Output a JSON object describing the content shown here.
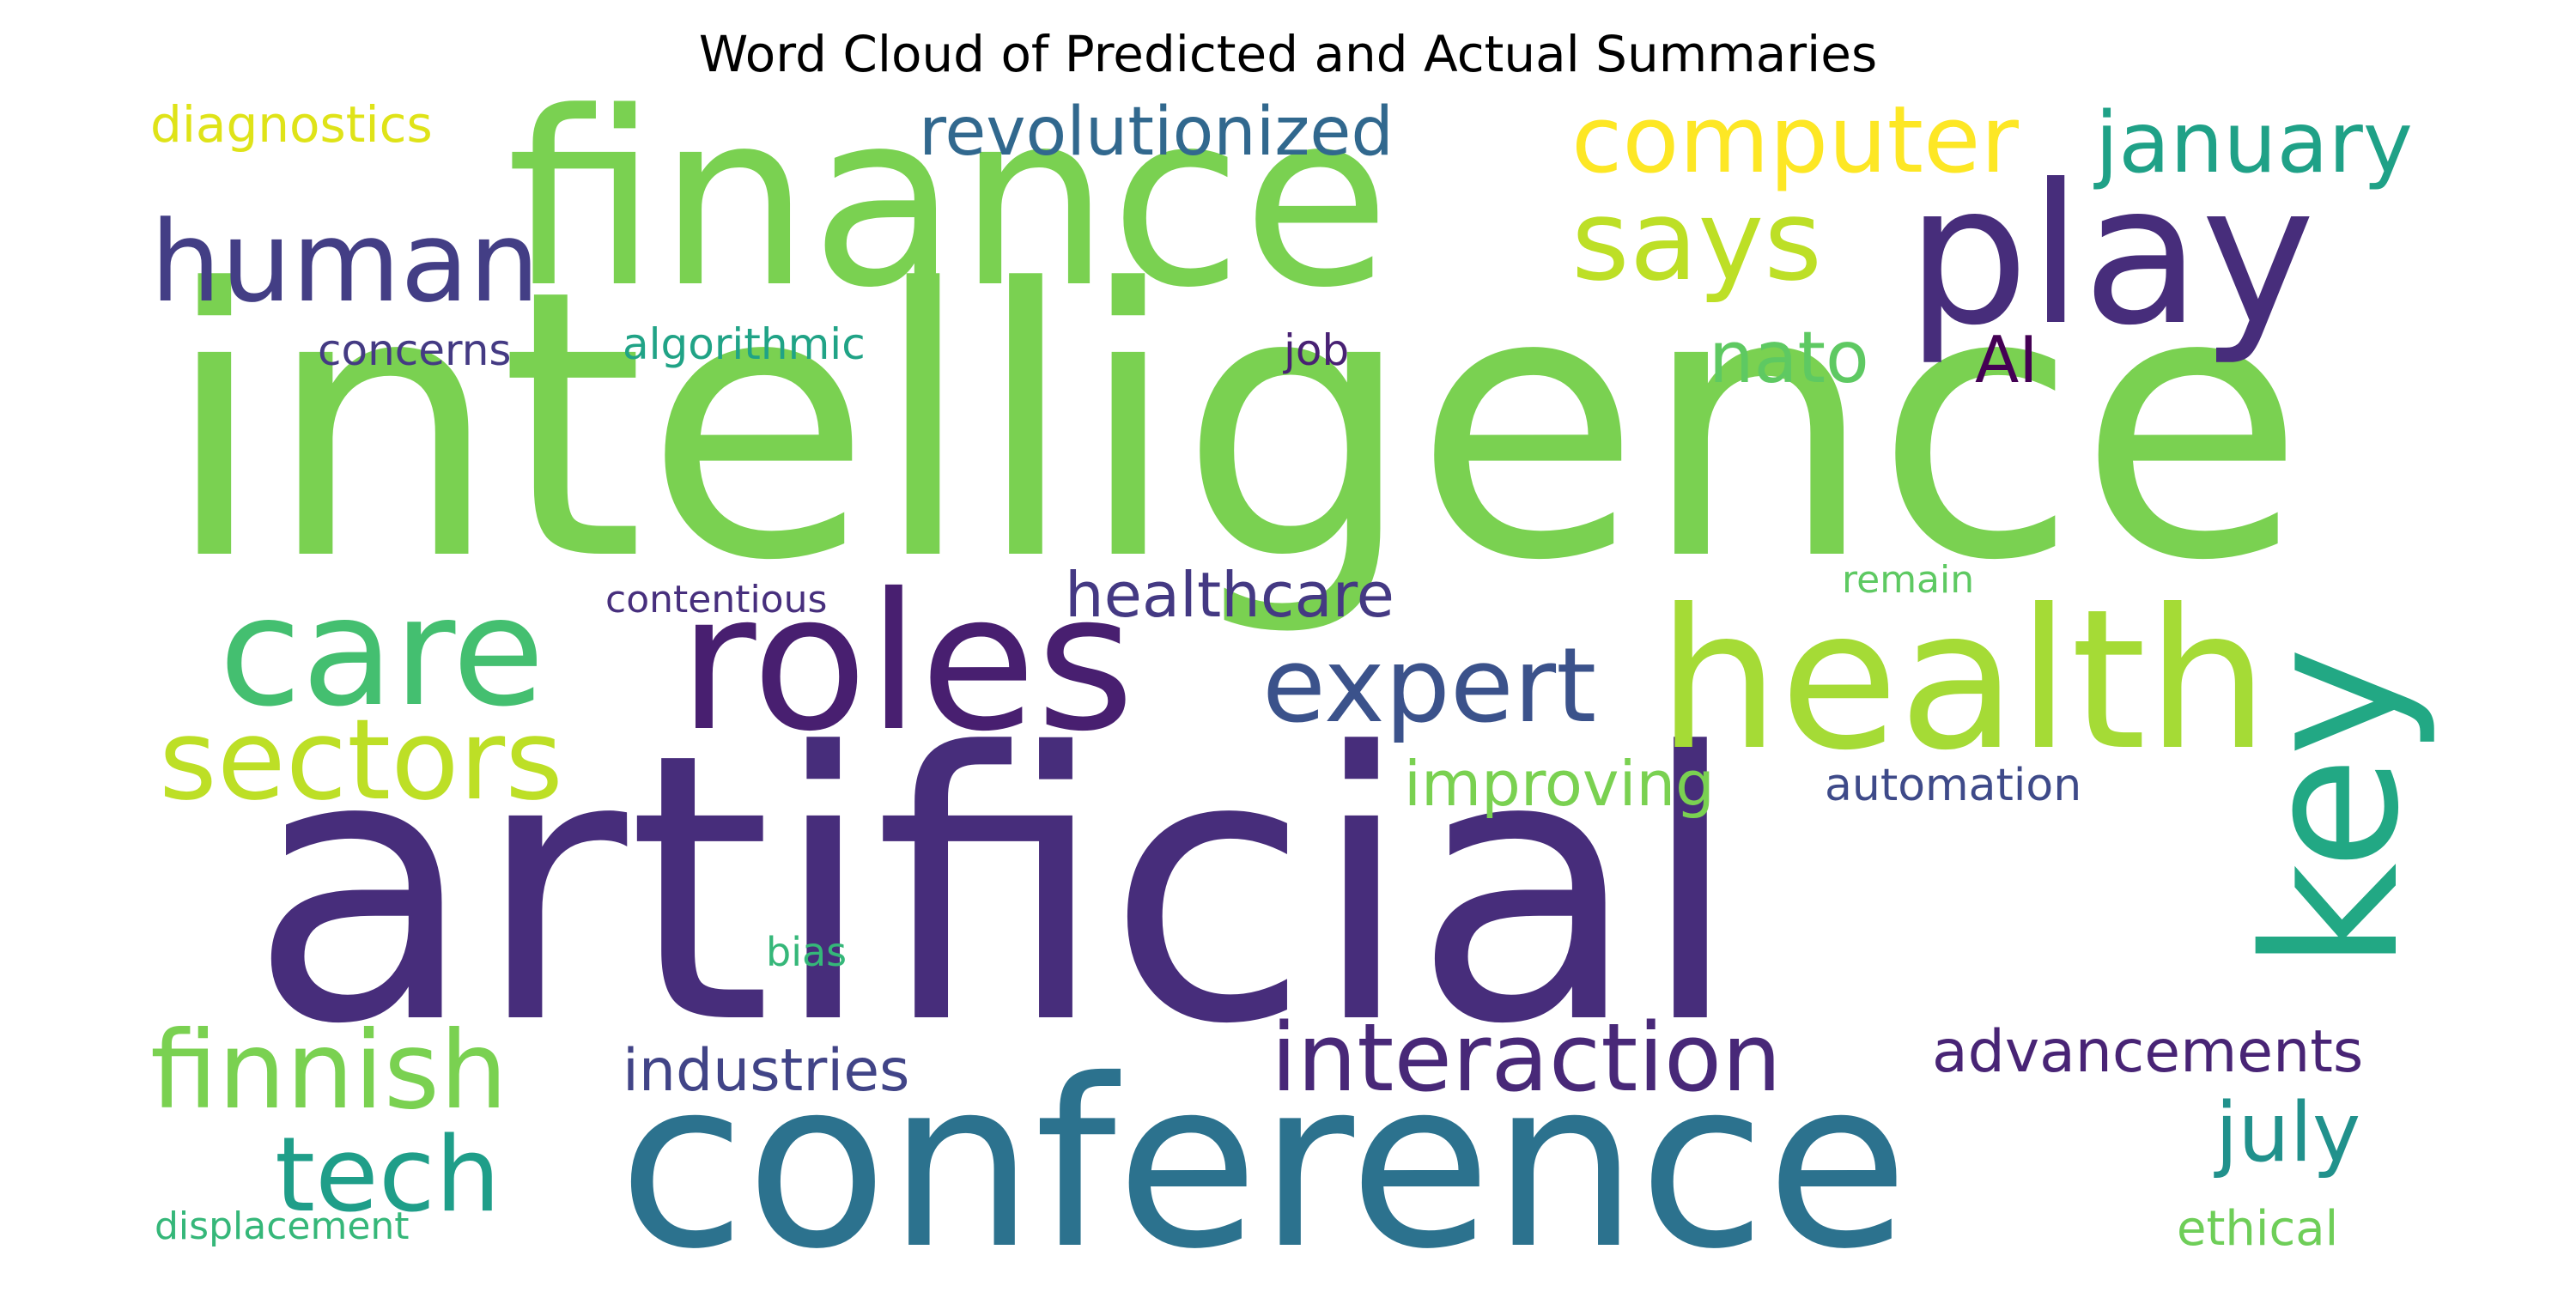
{
  "title": "Word Cloud of Predicted and Actual Summaries",
  "words": [
    {
      "text": "intelligence",
      "color": "#7ad151"
    },
    {
      "text": "artificial",
      "color": "#472d7b"
    },
    {
      "text": "finance",
      "color": "#7ad151"
    },
    {
      "text": "conference",
      "color": "#2c728e"
    },
    {
      "text": "play",
      "color": "#472d7b"
    },
    {
      "text": "health",
      "color": "#a5db36"
    },
    {
      "text": "roles",
      "color": "#481f70"
    },
    {
      "text": "key",
      "color": "#22a884"
    },
    {
      "text": "care",
      "color": "#44bf70"
    },
    {
      "text": "sectors",
      "color": "#bddf26"
    },
    {
      "text": "human",
      "color": "#433e85"
    },
    {
      "text": "says",
      "color": "#bddf26"
    },
    {
      "text": "expert",
      "color": "#3b528b"
    },
    {
      "text": "computer",
      "color": "#fde725"
    },
    {
      "text": "finnish",
      "color": "#7ad151"
    },
    {
      "text": "tech",
      "color": "#1f9e89"
    },
    {
      "text": "interaction",
      "color": "#482878"
    },
    {
      "text": "january",
      "color": "#1fa187"
    },
    {
      "text": "revolutionized",
      "color": "#31688e"
    },
    {
      "text": "nato",
      "color": "#5ec962"
    },
    {
      "text": "AI",
      "color": "#440154"
    },
    {
      "text": "july",
      "color": "#21918c"
    },
    {
      "text": "healthcare",
      "color": "#443983"
    },
    {
      "text": "improving",
      "color": "#7ad151"
    },
    {
      "text": "advancements",
      "color": "#482475"
    },
    {
      "text": "industries",
      "color": "#414487"
    },
    {
      "text": "diagnostics",
      "color": "#dfe318"
    },
    {
      "text": "concerns",
      "color": "#443a83"
    },
    {
      "text": "algorithmic",
      "color": "#20a386"
    },
    {
      "text": "job",
      "color": "#482173"
    },
    {
      "text": "automation",
      "color": "#3e4a89"
    },
    {
      "text": "contentious",
      "color": "#472f7d"
    },
    {
      "text": "remain",
      "color": "#5ec962"
    },
    {
      "text": "bias",
      "color": "#35b779"
    },
    {
      "text": "displacement",
      "color": "#35b779"
    },
    {
      "text": "ethical",
      "color": "#6ece58"
    }
  ]
}
